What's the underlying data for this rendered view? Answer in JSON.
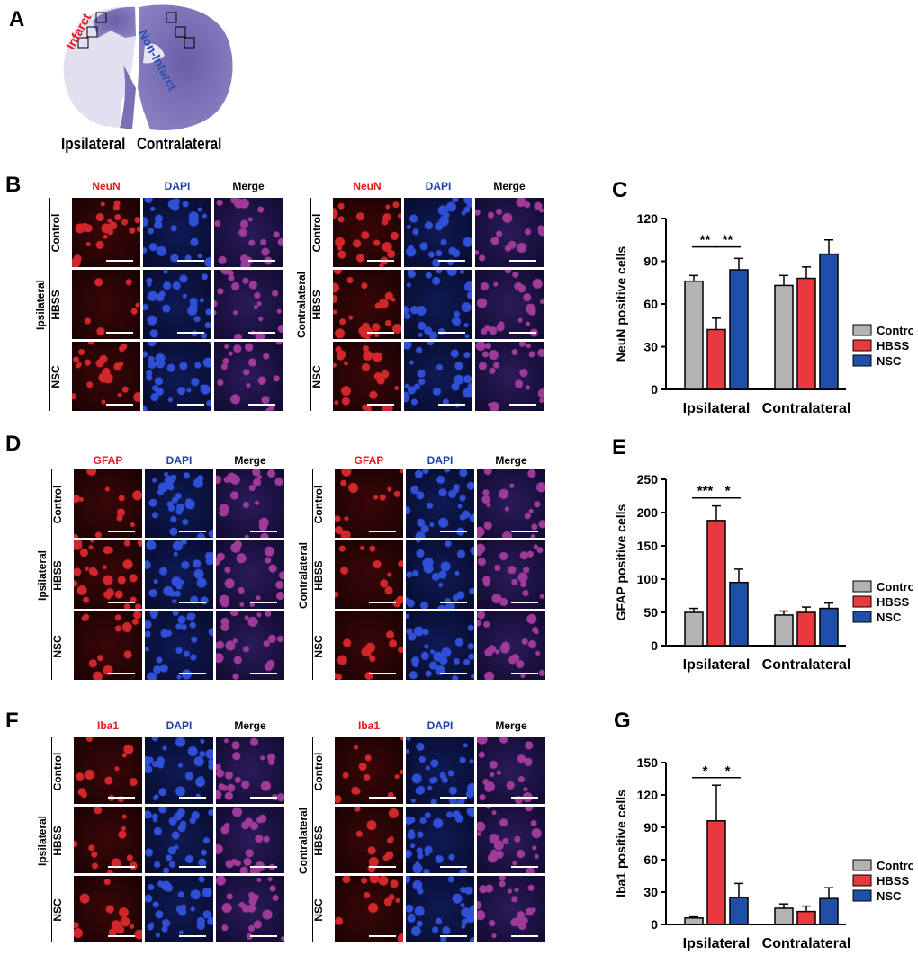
{
  "panel_letters": {
    "a": "A",
    "b": "B",
    "c": "C",
    "d": "D",
    "e": "E",
    "f": "F",
    "g": "G"
  },
  "brain": {
    "infarct": "Infarct",
    "non_infarct": "Non-Infarct",
    "ipsilateral": "Ipsilateral",
    "contralateral": "Contralateral"
  },
  "micro": {
    "b": {
      "stain": "NeuN",
      "dapi": "DAPI",
      "merge": "Merge"
    },
    "d": {
      "stain": "GFAP",
      "dapi": "DAPI",
      "merge": "Merge"
    },
    "f": {
      "stain": "Iba1",
      "dapi": "DAPI",
      "merge": "Merge"
    },
    "rows": [
      "Control",
      "HBSS",
      "NSC"
    ],
    "groups": [
      "Ipsilateral",
      "Contralateral"
    ]
  },
  "colors": {
    "control": "#b3b3b3",
    "hbss": "#e8393f",
    "nsc": "#1f4fa8"
  },
  "chart_data": [
    {
      "id": "C",
      "type": "bar",
      "ylabel": "NeuN positive cells",
      "categories": [
        "Ipsilateral",
        "Contralateral"
      ],
      "ylim": [
        0,
        120
      ],
      "yticks": [
        0,
        30,
        60,
        90,
        120
      ],
      "series": [
        {
          "name": "Control",
          "values": [
            76,
            73
          ],
          "errors": [
            4,
            7
          ]
        },
        {
          "name": "HBSS",
          "values": [
            42,
            78
          ],
          "errors": [
            8,
            8
          ]
        },
        {
          "name": "NSC",
          "values": [
            84,
            95
          ],
          "errors": [
            8,
            10
          ]
        }
      ],
      "significance": [
        {
          "group": 0,
          "from": 0,
          "to": 1,
          "label": "**",
          "y": 100
        },
        {
          "group": 0,
          "from": 1,
          "to": 2,
          "label": "**",
          "y": 100
        }
      ],
      "legend": [
        "Control",
        "HBSS",
        "NSC"
      ]
    },
    {
      "id": "E",
      "type": "bar",
      "ylabel": "GFAP positive cells",
      "categories": [
        "Ipsilateral",
        "Contralateral"
      ],
      "ylim": [
        0,
        250
      ],
      "yticks": [
        0,
        50,
        100,
        150,
        200,
        250
      ],
      "series": [
        {
          "name": "Control",
          "values": [
            50,
            46
          ],
          "errors": [
            6,
            6
          ]
        },
        {
          "name": "HBSS",
          "values": [
            188,
            50
          ],
          "errors": [
            22,
            8
          ]
        },
        {
          "name": "NSC",
          "values": [
            95,
            56
          ],
          "errors": [
            20,
            8
          ]
        }
      ],
      "significance": [
        {
          "group": 0,
          "from": 0,
          "to": 1,
          "label": "***",
          "y": 222
        },
        {
          "group": 0,
          "from": 1,
          "to": 2,
          "label": "*",
          "y": 222
        }
      ],
      "legend": [
        "Control",
        "HBSS",
        "NSC"
      ]
    },
    {
      "id": "G",
      "type": "bar",
      "ylabel": "Iba1 positive cells",
      "categories": [
        "Ipsilateral",
        "Contralateral"
      ],
      "ylim": [
        0,
        150
      ],
      "yticks": [
        0,
        30,
        60,
        90,
        120,
        150
      ],
      "series": [
        {
          "name": "Control",
          "values": [
            6,
            15
          ],
          "errors": [
            1,
            4
          ]
        },
        {
          "name": "HBSS",
          "values": [
            96,
            12
          ],
          "errors": [
            33,
            5
          ]
        },
        {
          "name": "NSC",
          "values": [
            25,
            24
          ],
          "errors": [
            13,
            10
          ]
        }
      ],
      "significance": [
        {
          "group": 0,
          "from": 0,
          "to": 1,
          "label": "*",
          "y": 136
        },
        {
          "group": 0,
          "from": 1,
          "to": 2,
          "label": "*",
          "y": 136
        }
      ],
      "legend": [
        "Control",
        "HBSS",
        "NSC"
      ]
    }
  ]
}
